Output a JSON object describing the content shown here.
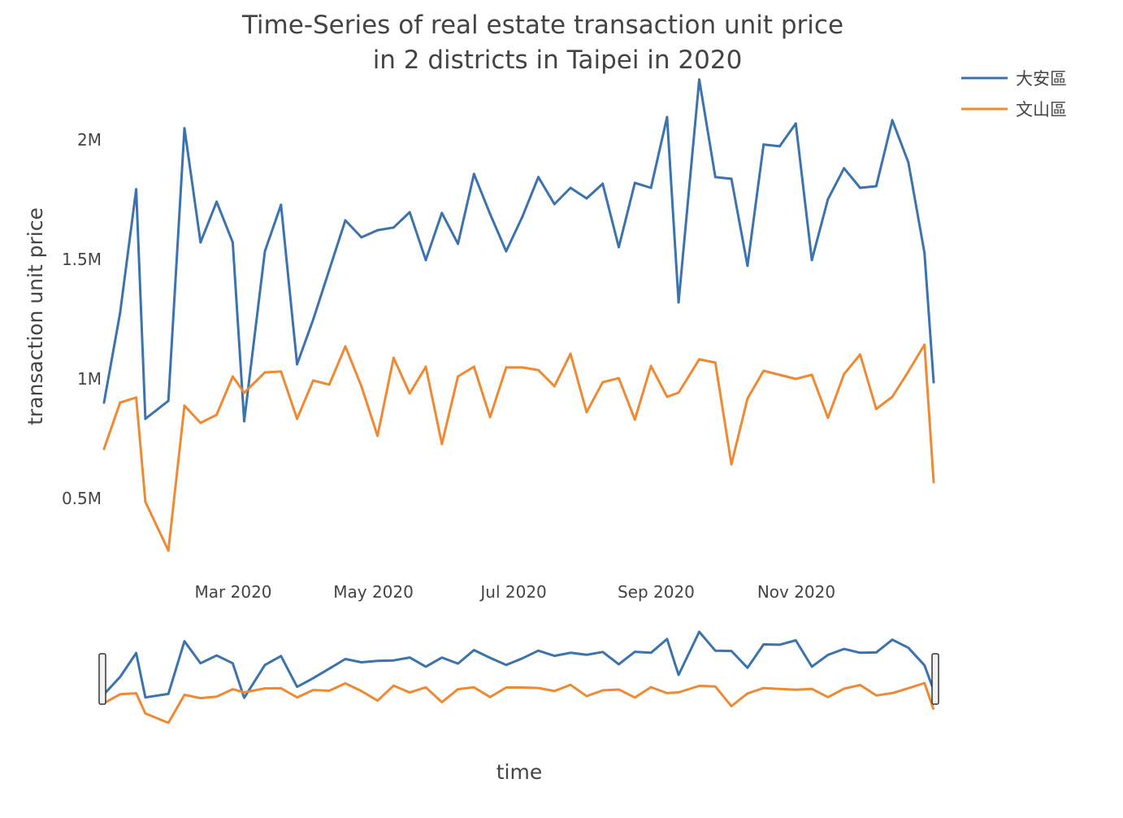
{
  "chart_data": {
    "type": "line",
    "title_line1": "Time-Series of real estate transaction unit price",
    "title_line2": "in 2 districts in  Taipei in 2020",
    "xlabel": "time",
    "ylabel": "transaction unit price",
    "xlim": [
      "2020-01-03",
      "2020-12-29"
    ],
    "ylim": [
      0.245,
      2.265
    ],
    "y_unit": "M",
    "x_ticks": [
      {
        "date": "2020-03-01",
        "label": "Mar 2020"
      },
      {
        "date": "2020-05-01",
        "label": "May 2020"
      },
      {
        "date": "2020-07-01",
        "label": "Jul 2020"
      },
      {
        "date": "2020-09-01",
        "label": "Sep 2020"
      },
      {
        "date": "2020-11-01",
        "label": "Nov 2020"
      }
    ],
    "y_ticks": [
      {
        "value": 0.5,
        "label": "0.5M"
      },
      {
        "value": 1,
        "label": "1M"
      },
      {
        "value": 1.5,
        "label": "1.5M"
      },
      {
        "value": 2,
        "label": "2M"
      }
    ],
    "grid": false,
    "legend_position": "top-right",
    "range_slider": true,
    "x": [
      "2020-01-03",
      "2020-01-10",
      "2020-01-17",
      "2020-01-21",
      "2020-01-31",
      "2020-02-07",
      "2020-02-14",
      "2020-02-21",
      "2020-02-28",
      "2020-03-04",
      "2020-03-13",
      "2020-03-20",
      "2020-03-27",
      "2020-04-03",
      "2020-04-10",
      "2020-04-17",
      "2020-04-24",
      "2020-05-01",
      "2020-05-08",
      "2020-05-15",
      "2020-05-22",
      "2020-05-29",
      "2020-06-05",
      "2020-06-12",
      "2020-06-19",
      "2020-06-26",
      "2020-07-03",
      "2020-07-10",
      "2020-07-17",
      "2020-07-24",
      "2020-07-31",
      "2020-08-07",
      "2020-08-14",
      "2020-08-21",
      "2020-08-28",
      "2020-09-04",
      "2020-09-09",
      "2020-09-18",
      "2020-09-25",
      "2020-10-02",
      "2020-10-09",
      "2020-10-16",
      "2020-10-23",
      "2020-10-30",
      "2020-11-06",
      "2020-11-13",
      "2020-11-20",
      "2020-11-27",
      "2020-12-04",
      "2020-12-11",
      "2020-12-18",
      "2020-12-25",
      "2020-12-29"
    ],
    "series": [
      {
        "name": "大安區",
        "color": "#3a73ad",
        "values": [
          0.901,
          1.276,
          1.793,
          0.833,
          0.908,
          2.048,
          1.571,
          1.741,
          1.571,
          0.823,
          1.534,
          1.728,
          1.061,
          1.248,
          1.456,
          1.663,
          1.592,
          1.622,
          1.633,
          1.697,
          1.497,
          1.694,
          1.565,
          1.857,
          1.69,
          1.534,
          1.677,
          1.844,
          1.731,
          1.799,
          1.755,
          1.816,
          1.551,
          1.82,
          1.799,
          2.095,
          1.32,
          2.252,
          1.844,
          1.837,
          1.473,
          1.98,
          1.973,
          2.068,
          1.497,
          1.752,
          1.881,
          1.799,
          1.806,
          2.082,
          1.905,
          1.527,
          0.986
        ]
      },
      {
        "name": "文山區",
        "color": "#ef8a33",
        "values": [
          0.707,
          0.901,
          0.922,
          0.486,
          0.282,
          0.888,
          0.816,
          0.85,
          1.01,
          0.942,
          1.027,
          1.031,
          0.833,
          0.993,
          0.976,
          1.136,
          0.969,
          0.762,
          1.088,
          0.939,
          1.051,
          0.728,
          1.01,
          1.051,
          0.84,
          1.048,
          1.048,
          1.037,
          0.969,
          1.105,
          0.861,
          0.986,
          1.003,
          0.83,
          1.054,
          0.925,
          0.942,
          1.082,
          1.068,
          0.643,
          0.918,
          1.034,
          1.017,
          1.0,
          1.017,
          0.837,
          1.02,
          1.102,
          0.874,
          0.925,
          1.031,
          1.143,
          0.568
        ]
      }
    ]
  }
}
